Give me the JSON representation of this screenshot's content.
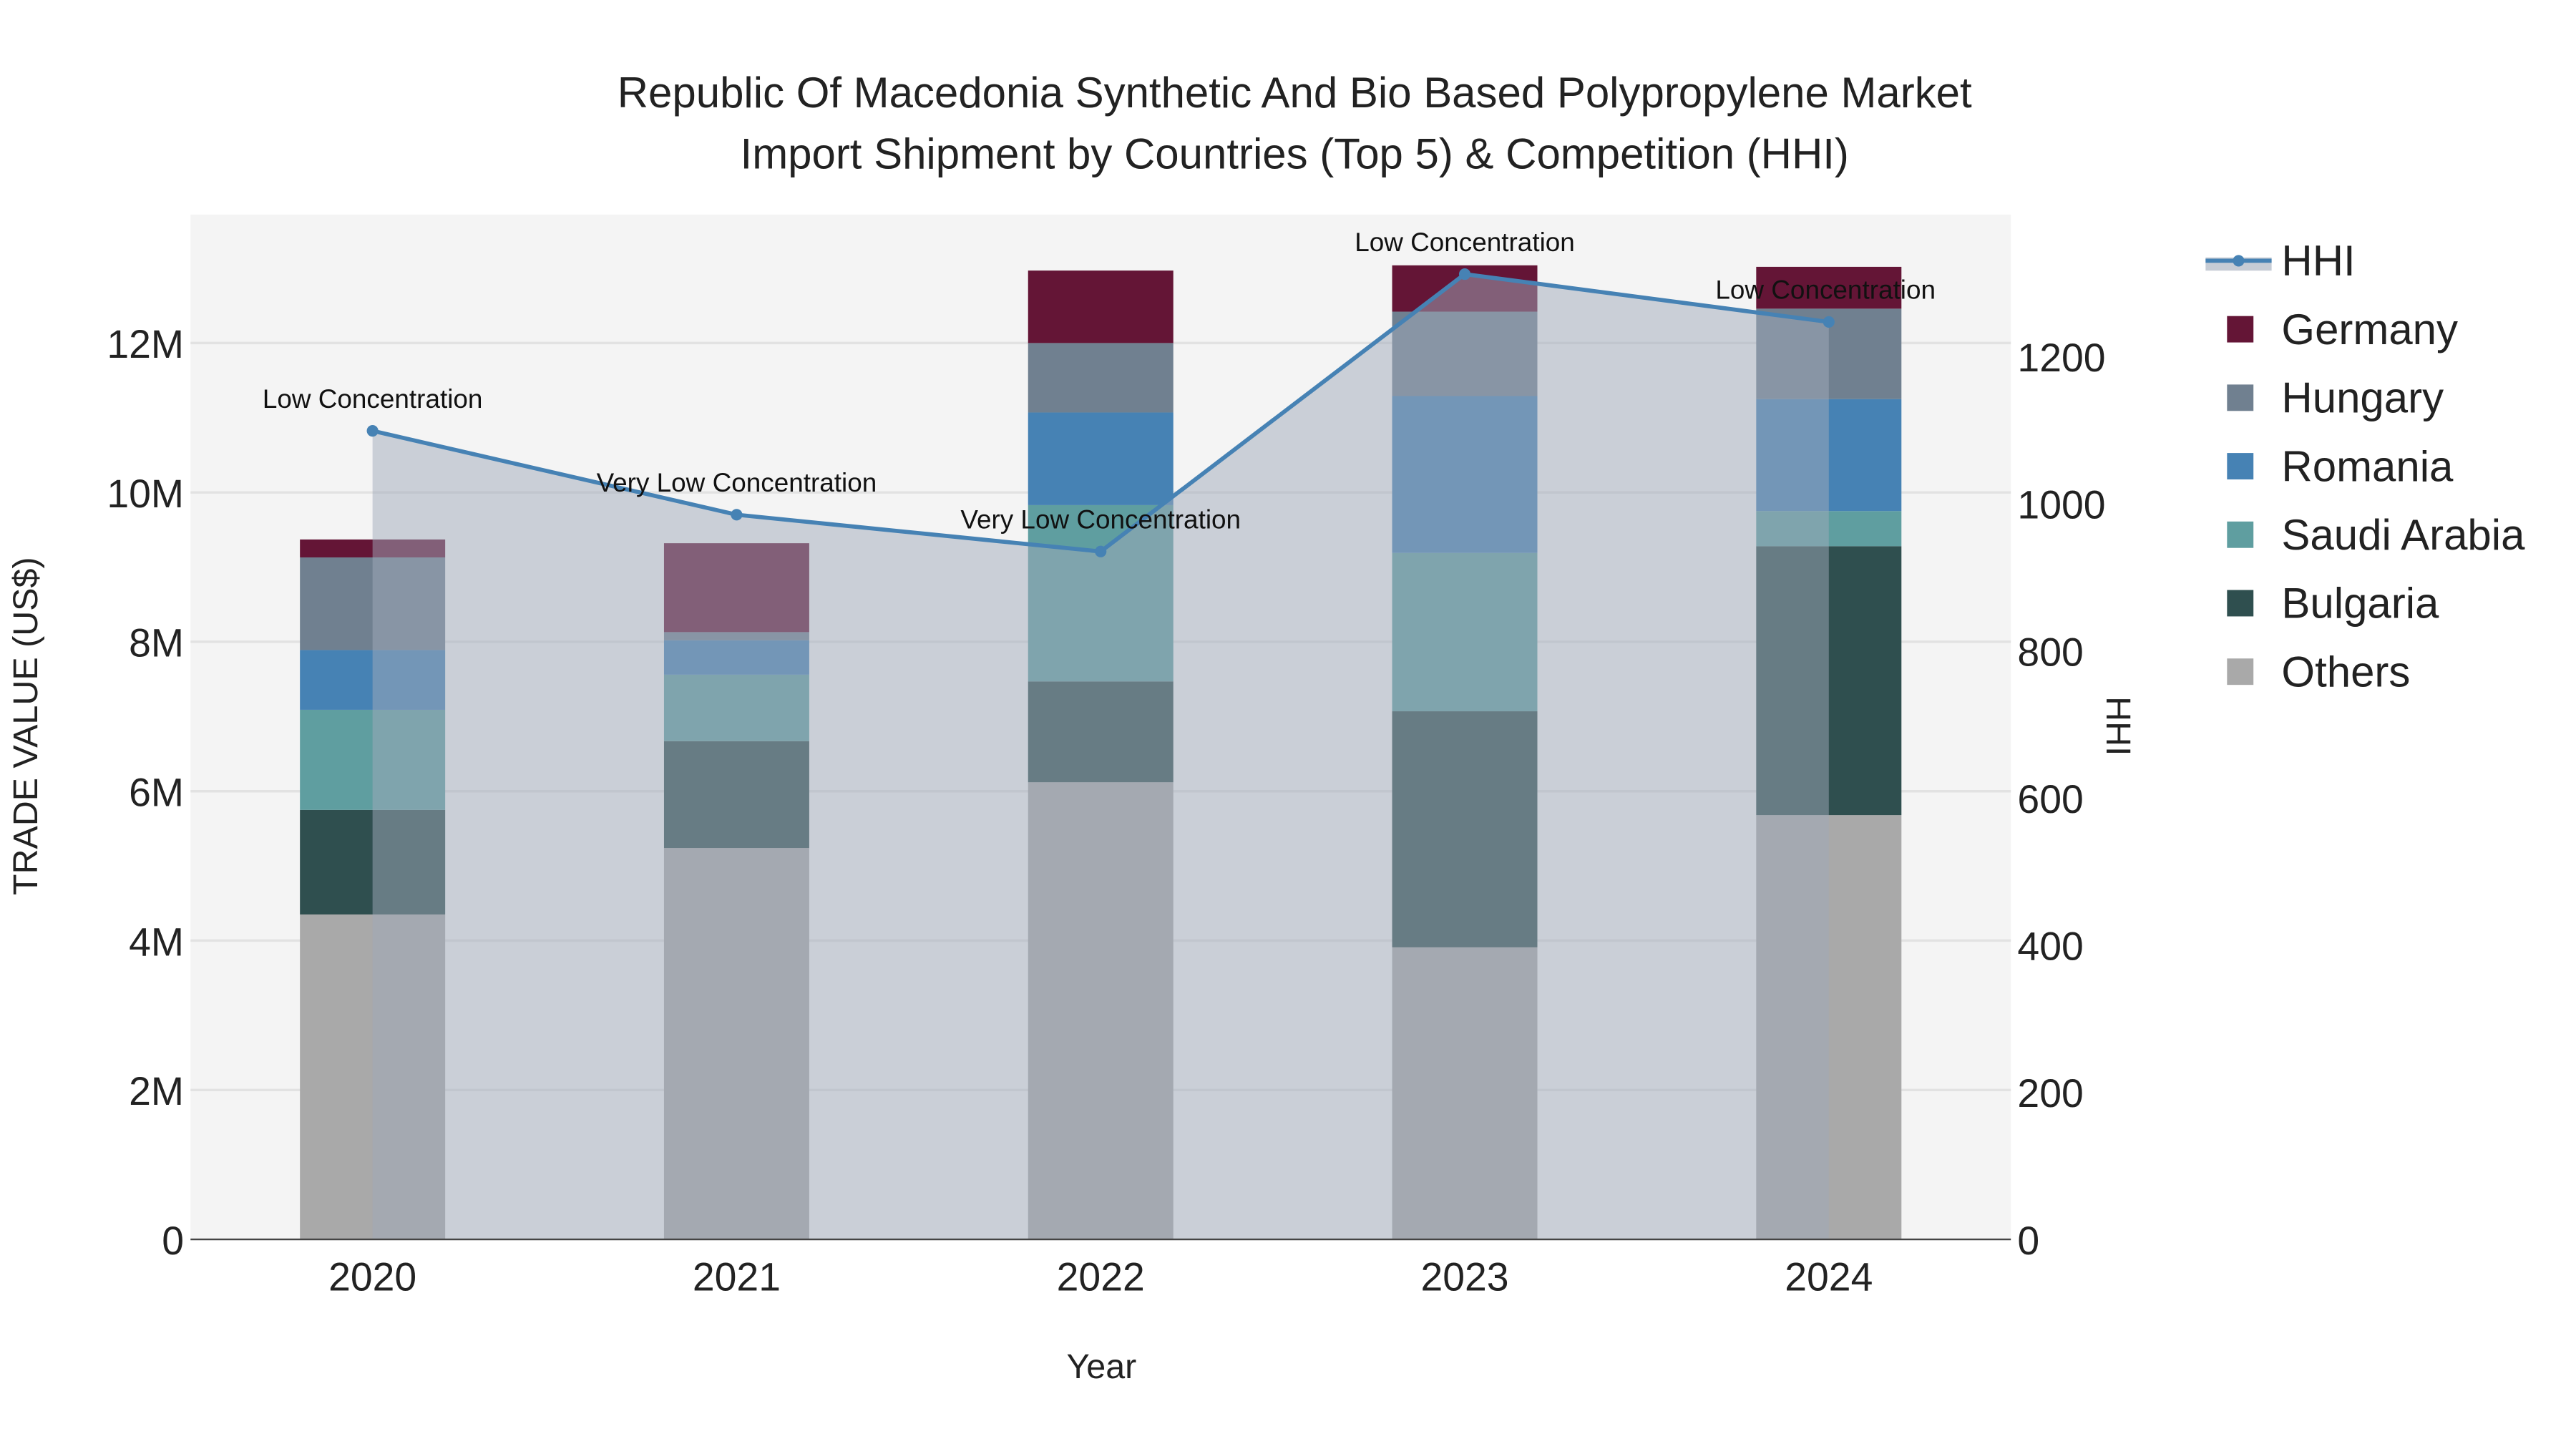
{
  "chart_data": {
    "type": "bar",
    "stacked": true,
    "title_line1": "Republic Of Macedonia Synthetic And Bio Based Polypropylene Market",
    "title_line2": "Import Shipment by Countries (Top 5) & Competition (HHI)",
    "xlabel": "Year",
    "ylabel": "TRADE VALUE (US$)",
    "y2label": "HHI",
    "categories": [
      "2020",
      "2021",
      "2022",
      "2023",
      "2024"
    ],
    "ylim": [
      0,
      13.72
    ],
    "yunit": "M",
    "yticks": [
      0,
      2,
      4,
      6,
      8,
      10,
      12
    ],
    "ytick_labels": [
      "0",
      "2M",
      "4M",
      "6M",
      "8M",
      "10M",
      "12M"
    ],
    "y2lim": [
      0,
      1393
    ],
    "y2ticks": [
      0,
      200,
      400,
      600,
      800,
      1000,
      1200
    ],
    "y2tick_labels": [
      "0",
      "200",
      "400",
      "600",
      "800",
      "1000",
      "1200"
    ],
    "grid": true,
    "legend_position": "right",
    "series": [
      {
        "name": "Others",
        "color": "#A9A9A9",
        "values": [
          4.35,
          5.24,
          6.12,
          3.91,
          5.68
        ]
      },
      {
        "name": "Bulgaria",
        "color": "#2F4F4F",
        "values": [
          1.4,
          1.43,
          1.35,
          3.16,
          3.6
        ]
      },
      {
        "name": "Saudi Arabia",
        "color": "#5F9EA0",
        "values": [
          1.34,
          0.89,
          2.36,
          2.12,
          0.47
        ]
      },
      {
        "name": "Romania",
        "color": "#4682B4",
        "values": [
          0.8,
          0.46,
          1.24,
          2.1,
          1.5
        ]
      },
      {
        "name": "Hungary",
        "color": "#708090",
        "values": [
          1.24,
          0.11,
          0.93,
          1.13,
          1.21
        ]
      },
      {
        "name": "Germany",
        "color": "#641536",
        "values": [
          0.24,
          1.19,
          0.97,
          0.62,
          0.56
        ]
      }
    ],
    "hhi": {
      "name": "HHI",
      "color": "#4682B4",
      "values": [
        1099,
        985,
        935,
        1312,
        1247
      ],
      "annotations": [
        "Low Concentration",
        "Very Low Concentration",
        "Very Low Concentration",
        "Low Concentration",
        "Low Concentration"
      ]
    },
    "legend_order": [
      "HHI",
      "Germany",
      "Hungary",
      "Romania",
      "Saudi Arabia",
      "Bulgaria",
      "Others"
    ]
  }
}
